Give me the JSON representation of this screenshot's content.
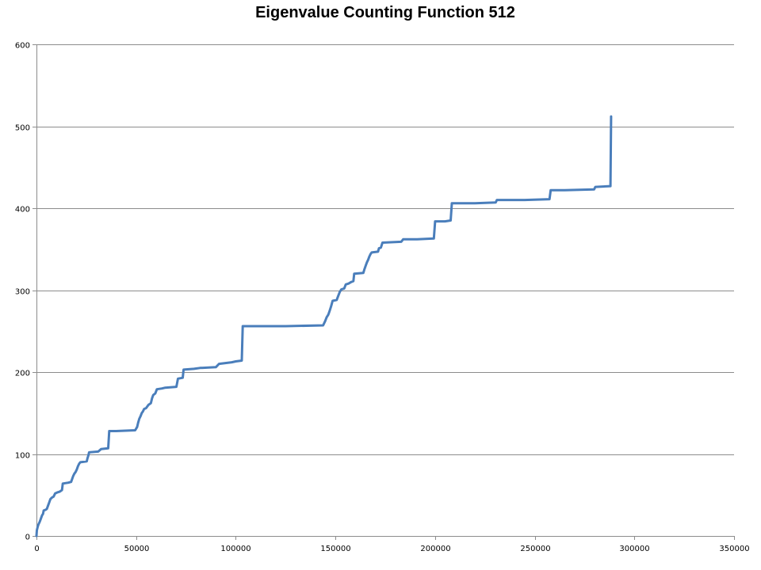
{
  "chart_data": {
    "type": "line",
    "title": "Eigenvalue Counting Function 512",
    "xlabel": "",
    "ylabel": "",
    "xlim": [
      0,
      350000
    ],
    "ylim": [
      0,
      600
    ],
    "x_ticks": [
      0,
      50000,
      100000,
      150000,
      200000,
      250000,
      300000,
      350000
    ],
    "y_ticks": [
      0,
      100,
      200,
      300,
      400,
      500,
      600
    ],
    "grid": "horizontal",
    "legend": "none",
    "colors": {
      "series": "#4a7ebb",
      "grid": "#8c8c8c",
      "axis": "#8c8c8c"
    },
    "series": [
      {
        "values": [
          [
            0,
            0
          ],
          [
            200,
            7
          ],
          [
            600,
            11
          ],
          [
            1000,
            14
          ],
          [
            1600,
            17
          ],
          [
            2200,
            21
          ],
          [
            2800,
            25
          ],
          [
            3300,
            27
          ],
          [
            3600,
            31
          ],
          [
            4600,
            32
          ],
          [
            5200,
            33
          ],
          [
            5800,
            37
          ],
          [
            6400,
            41
          ],
          [
            7000,
            45
          ],
          [
            7800,
            47
          ],
          [
            8600,
            48
          ],
          [
            9400,
            52
          ],
          [
            10400,
            53
          ],
          [
            11600,
            54
          ],
          [
            12800,
            56
          ],
          [
            13200,
            64
          ],
          [
            16000,
            65
          ],
          [
            17400,
            66
          ],
          [
            17800,
            69
          ],
          [
            18400,
            73
          ],
          [
            19000,
            76
          ],
          [
            19600,
            78
          ],
          [
            20200,
            81
          ],
          [
            20800,
            85
          ],
          [
            21400,
            88
          ],
          [
            22000,
            90
          ],
          [
            25200,
            91
          ],
          [
            25600,
            95
          ],
          [
            26000,
            98
          ],
          [
            26400,
            102
          ],
          [
            31000,
            103
          ],
          [
            32400,
            106
          ],
          [
            36000,
            107
          ],
          [
            36500,
            128
          ],
          [
            40000,
            128
          ],
          [
            49500,
            129
          ],
          [
            50500,
            133
          ],
          [
            51000,
            138
          ],
          [
            51600,
            143
          ],
          [
            52200,
            146
          ],
          [
            52800,
            150
          ],
          [
            53400,
            152
          ],
          [
            54000,
            155
          ],
          [
            55000,
            156
          ],
          [
            56200,
            160
          ],
          [
            57400,
            162
          ],
          [
            58000,
            168
          ],
          [
            58600,
            172
          ],
          [
            59600,
            174
          ],
          [
            60400,
            179
          ],
          [
            63000,
            180
          ],
          [
            64600,
            181
          ],
          [
            70200,
            182
          ],
          [
            70600,
            187
          ],
          [
            71000,
            192
          ],
          [
            73400,
            193
          ],
          [
            73800,
            203
          ],
          [
            79000,
            204
          ],
          [
            82000,
            205
          ],
          [
            90000,
            206
          ],
          [
            91600,
            210
          ],
          [
            98000,
            212
          ],
          [
            100000,
            213
          ],
          [
            103000,
            214
          ],
          [
            103500,
            256
          ],
          [
            125000,
            256
          ],
          [
            143800,
            257
          ],
          [
            144800,
            262
          ],
          [
            145600,
            267
          ],
          [
            146400,
            270
          ],
          [
            147000,
            274
          ],
          [
            147800,
            280
          ],
          [
            148600,
            287
          ],
          [
            150600,
            288
          ],
          [
            151400,
            293
          ],
          [
            152200,
            298
          ],
          [
            153000,
            301
          ],
          [
            154400,
            302
          ],
          [
            155200,
            307
          ],
          [
            156600,
            308
          ],
          [
            158000,
            310
          ],
          [
            159000,
            311
          ],
          [
            159400,
            320
          ],
          [
            164000,
            321
          ],
          [
            164600,
            326
          ],
          [
            165200,
            330
          ],
          [
            165800,
            334
          ],
          [
            166400,
            337
          ],
          [
            167000,
            341
          ],
          [
            167600,
            344
          ],
          [
            168200,
            346
          ],
          [
            171400,
            347
          ],
          [
            171800,
            351
          ],
          [
            172800,
            352
          ],
          [
            173600,
            358
          ],
          [
            183000,
            359
          ],
          [
            184000,
            362
          ],
          [
            191000,
            362
          ],
          [
            199400,
            363
          ],
          [
            200000,
            384
          ],
          [
            205000,
            384
          ],
          [
            207800,
            385
          ],
          [
            208400,
            406
          ],
          [
            220000,
            406
          ],
          [
            230400,
            407
          ],
          [
            231000,
            410
          ],
          [
            245000,
            410
          ],
          [
            257400,
            411
          ],
          [
            258000,
            422
          ],
          [
            265000,
            422
          ],
          [
            279800,
            423
          ],
          [
            280400,
            426
          ],
          [
            288000,
            427
          ],
          [
            288300,
            512
          ]
        ]
      }
    ]
  }
}
